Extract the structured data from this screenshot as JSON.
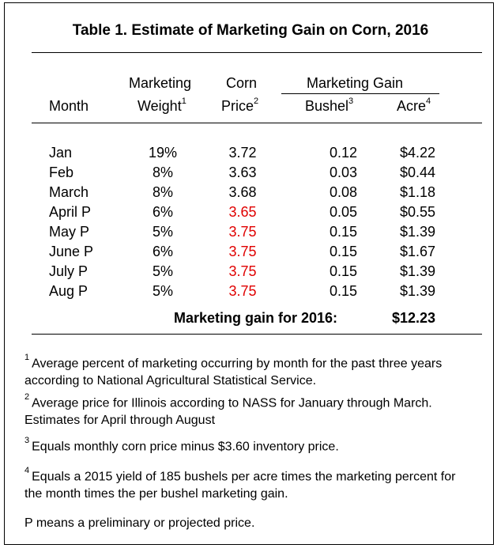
{
  "title": "Table 1.  Estimate of Marketing Gain on Corn, 2016",
  "headers": {
    "month": "Month",
    "weight_top": "Marketing",
    "weight_bottom": "Weight",
    "weight_sup": "1",
    "price_top": "Corn",
    "price_bottom": "Price",
    "price_sup": "2",
    "gain_group": "Marketing Gain",
    "bushel": "Bushel",
    "bushel_sup": "3",
    "acre": "Acre",
    "acre_sup": "4"
  },
  "rows": [
    {
      "month": "Jan",
      "weight": "19%",
      "price": "3.72",
      "bushel": "0.12",
      "acre": "$4.22",
      "projected": false
    },
    {
      "month": "Feb",
      "weight": "8%",
      "price": "3.63",
      "bushel": "0.03",
      "acre": "$0.44",
      "projected": false
    },
    {
      "month": "March",
      "weight": "8%",
      "price": "3.68",
      "bushel": "0.08",
      "acre": "$1.18",
      "projected": false
    },
    {
      "month": "April P",
      "weight": "6%",
      "price": "3.65",
      "bushel": "0.05",
      "acre": "$0.55",
      "projected": true
    },
    {
      "month": "May P",
      "weight": "5%",
      "price": "3.75",
      "bushel": "0.15",
      "acre": "$1.39",
      "projected": true
    },
    {
      "month": "June P",
      "weight": "6%",
      "price": "3.75",
      "bushel": "0.15",
      "acre": "$1.67",
      "projected": true
    },
    {
      "month": "July P",
      "weight": "5%",
      "price": "3.75",
      "bushel": "0.15",
      "acre": "$1.39",
      "projected": true
    },
    {
      "month": "Aug P",
      "weight": "5%",
      "price": "3.75",
      "bushel": "0.15",
      "acre": "$1.39",
      "projected": true
    }
  ],
  "total": {
    "label": "Marketing gain for 2016:",
    "value": "$12.23"
  },
  "notes": [
    {
      "sup": "1",
      "text": "Average percent of marketing occurring by month for the past three years according to National Agricultural Statistical Service."
    },
    {
      "sup": "2",
      "text": "Average price for Illinois according to NASS for January through March.  Estimates for April through August"
    },
    {
      "sup": "3",
      "text": "Equals monthly corn price minus $3.60 inventory price."
    },
    {
      "sup": "4",
      "text": "Equals a 2015 yield of 185 bushels per acre times the marketing percent for the month times the per bushel marketing gain."
    },
    {
      "sup": "",
      "text": "P means a preliminary or projected price."
    }
  ],
  "colors": {
    "projected_price": "#e00000",
    "text": "#000000"
  }
}
